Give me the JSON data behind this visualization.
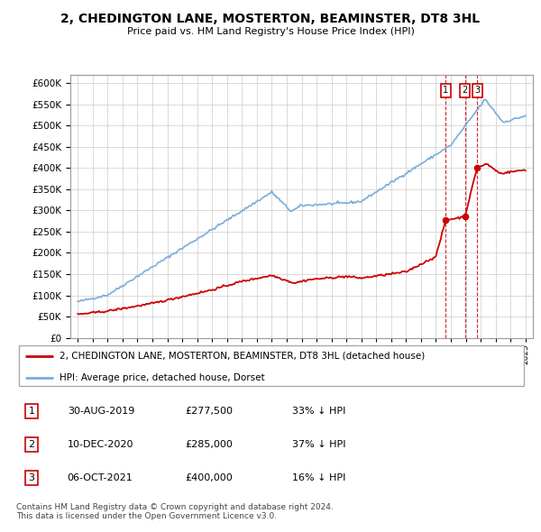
{
  "title": "2, CHEDINGTON LANE, MOSTERTON, BEAMINSTER, DT8 3HL",
  "subtitle": "Price paid vs. HM Land Registry's House Price Index (HPI)",
  "legend_label_red": "2, CHEDINGTON LANE, MOSTERTON, BEAMINSTER, DT8 3HL (detached house)",
  "legend_label_blue": "HPI: Average price, detached house, Dorset",
  "transactions": [
    {
      "num": 1,
      "date": "30-AUG-2019",
      "price": "£277,500",
      "hpi": "33% ↓ HPI",
      "year": 2019.66
    },
    {
      "num": 2,
      "date": "10-DEC-2020",
      "price": "£285,000",
      "hpi": "37% ↓ HPI",
      "year": 2020.94
    },
    {
      "num": 3,
      "date": "06-OCT-2021",
      "price": "£400,000",
      "hpi": "16% ↓ HPI",
      "year": 2021.76
    }
  ],
  "transaction_values": [
    277500,
    285000,
    400000
  ],
  "ylim": [
    0,
    620000
  ],
  "yticks": [
    0,
    50000,
    100000,
    150000,
    200000,
    250000,
    300000,
    350000,
    400000,
    450000,
    500000,
    550000,
    600000
  ],
  "background_color": "#ffffff",
  "grid_color": "#cccccc",
  "red_color": "#cc0000",
  "blue_color": "#7aaddb"
}
